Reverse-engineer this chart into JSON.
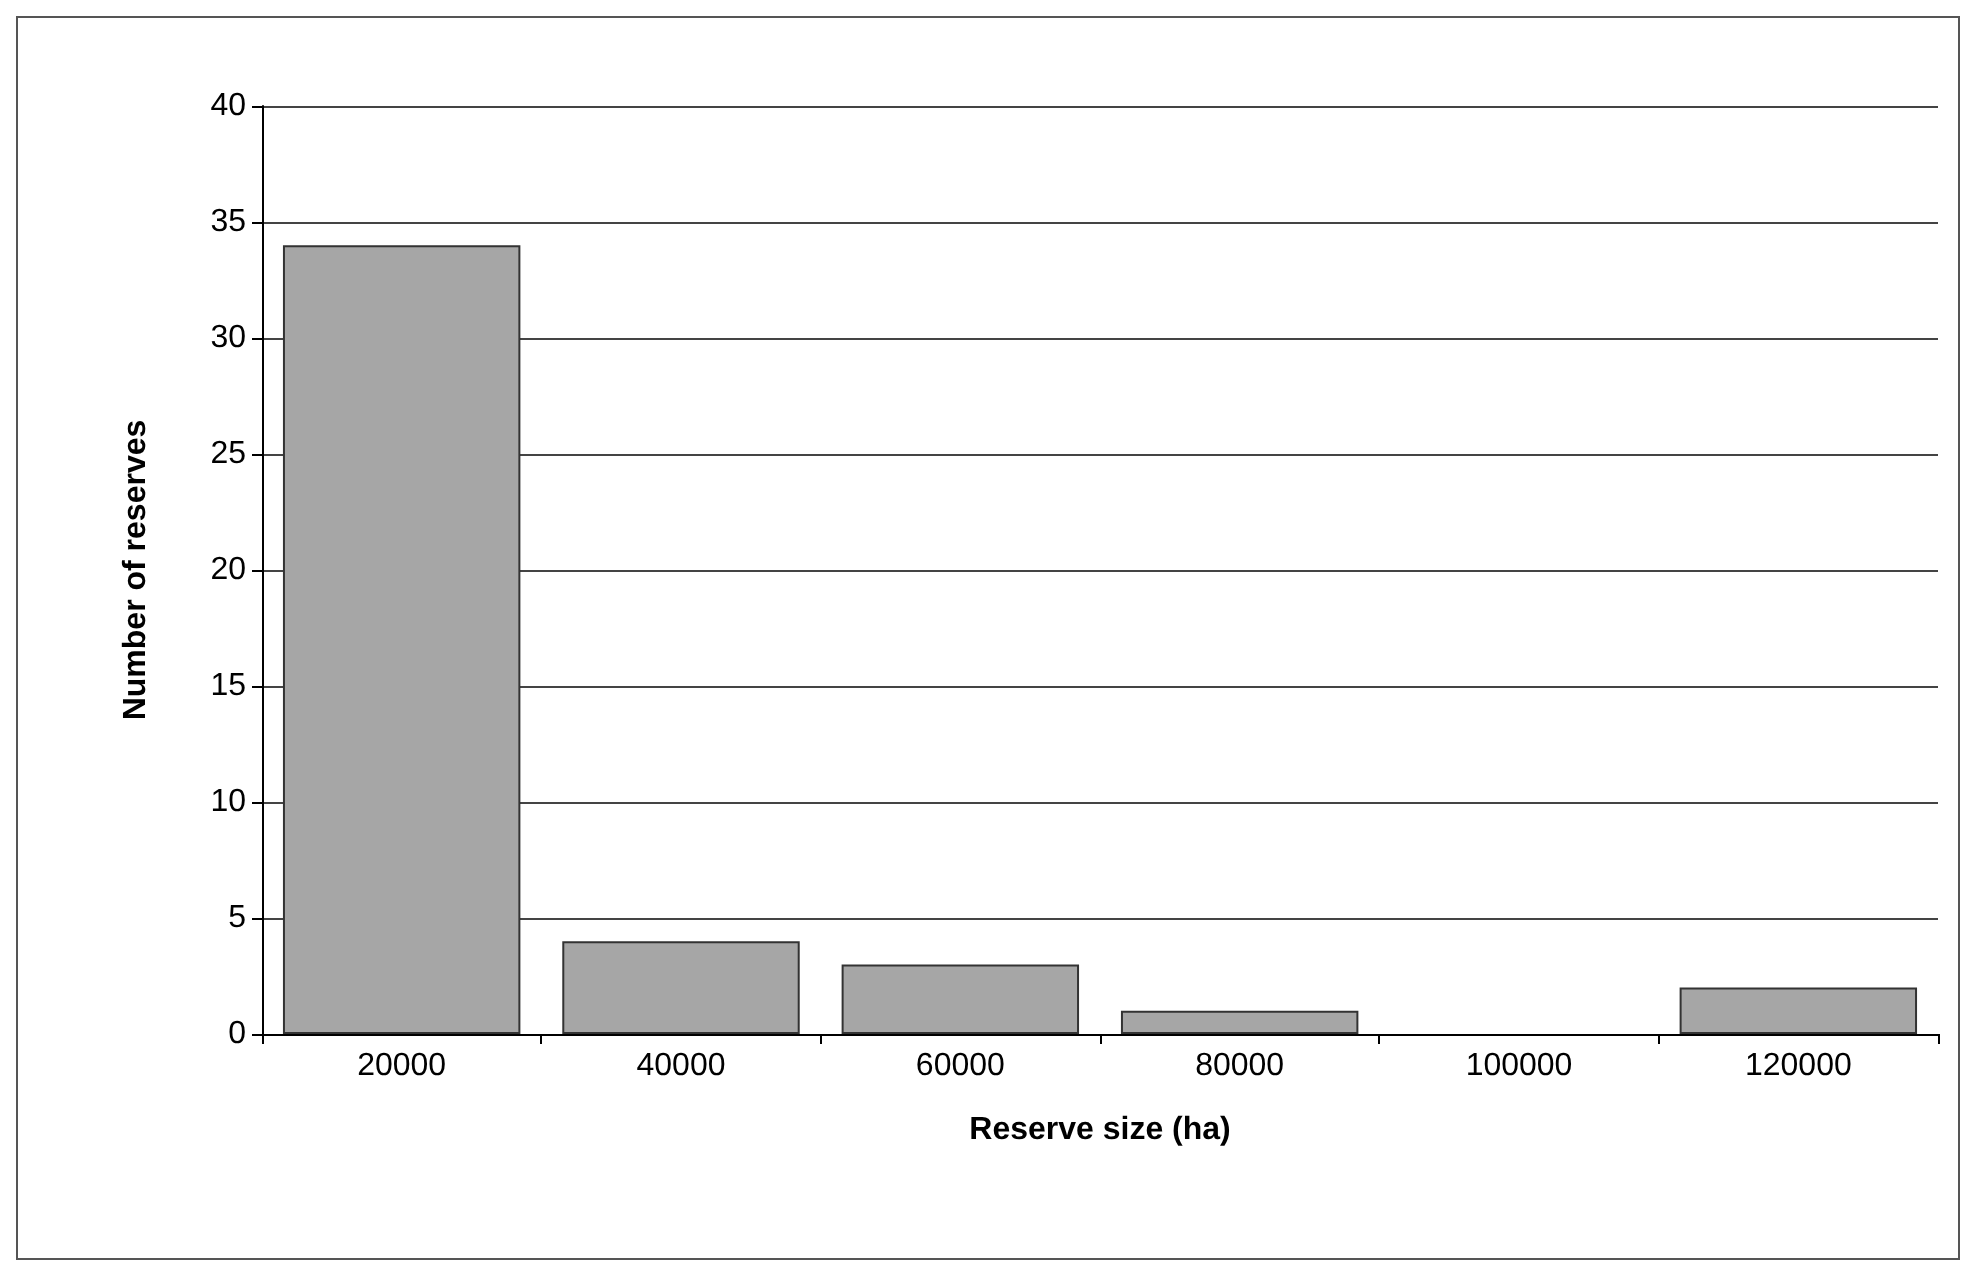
{
  "chart_data": {
    "type": "bar",
    "xlabel": "Reserve size (ha)",
    "ylabel": "Number of reserves",
    "categories": [
      "20000",
      "40000",
      "60000",
      "80000",
      "100000",
      "120000"
    ],
    "values": [
      34,
      4,
      3,
      1,
      0,
      2
    ],
    "color": "#a6a6a6",
    "ylim": [
      0,
      40
    ],
    "yticks": [
      0,
      5,
      10,
      15,
      20,
      25,
      30,
      35,
      40
    ],
    "grid": "y"
  }
}
